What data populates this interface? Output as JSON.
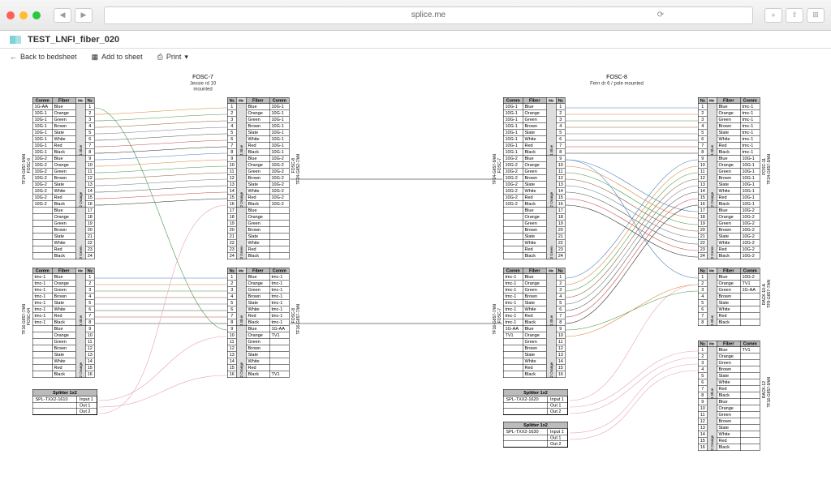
{
  "browser": {
    "url": "splice.me",
    "btn_share": "⇪",
    "btn_plus": "+",
    "btn_tabs": "⊞"
  },
  "page": {
    "title": "TEST_LNFI_fiber_020",
    "back": "Back to bedsheet",
    "add": "Add to sheet",
    "print": "Print"
  },
  "fosc7": {
    "title": "FOSC-7",
    "sub1": "Jessie rd 10",
    "sub2": "mounted"
  },
  "fosc8": {
    "title": "FOSC-8",
    "sub1": "Fern dr 6 / pole mounted"
  },
  "headers": {
    "comm": "Comm",
    "fiber": "Fiber",
    "mc": "Mc",
    "num": "№"
  },
  "fibers24": [
    "Blue",
    "Orange",
    "Green",
    "Brown",
    "Slate",
    "White",
    "Red",
    "Black",
    "Blue",
    "Orange",
    "Green",
    "Brown",
    "Slate",
    "White",
    "Red",
    "Black",
    "Blue",
    "Orange",
    "Green",
    "Brown",
    "Slate",
    "White",
    "Red",
    "Black"
  ],
  "fibers16": [
    "Blue",
    "Orange",
    "Green",
    "Brown",
    "Slate",
    "White",
    "Red",
    "Black",
    "Blue",
    "Orange",
    "Green",
    "Brown",
    "Slate",
    "White",
    "Red",
    "Black"
  ],
  "fibers8": [
    "Blue",
    "Orange",
    "Green",
    "Brown",
    "Slate",
    "White",
    "Red",
    "Black"
  ],
  "mc24": [
    "1 Blue",
    "2 Orange",
    "3 Green"
  ],
  "mc16": [
    "1 Blue",
    "2 Orange"
  ],
  "t1_comm": [
    "1G-AA",
    "10G-1",
    "10G-1",
    "10G-1",
    "10G-1",
    "10G-1",
    "10G-1",
    "10G-1",
    "10G-2",
    "10G-2",
    "10G-2",
    "10G-2",
    "10G-2",
    "10G-2",
    "10G-2",
    "10G-2",
    "",
    "",
    "",
    "",
    "",
    "",
    "",
    ""
  ],
  "t1_label": "FOSC-6",
  "t1_cable": "TF24-G657-9/kN",
  "t2_comm": [
    "10G-1",
    "10G-1",
    "10G-1",
    "10G-1",
    "10G-1",
    "10G-1",
    "10G-1",
    "10G-1",
    "10G-2",
    "10G-2",
    "10G-2",
    "10G-2",
    "10G-2",
    "10G-2",
    "10G-2",
    "10G-2",
    "",
    "",
    "",
    "",
    "",
    "",
    "",
    ""
  ],
  "t2_label": "FOSC-8",
  "t2_cable": "TF24-G652-7/kN",
  "t3_comm": [
    "tmc-1",
    "tmc-1",
    "tmc-1",
    "tmc-1",
    "tmc-1",
    "tmc-1",
    "tmc-1",
    "tmc-1",
    "",
    "",
    "",
    "",
    "",
    "",
    "",
    ""
  ],
  "t3_label": "FOSC-04",
  "t3_cable": "TF16-G657-7/kN",
  "t4_comm": [
    "tmc-1",
    "tmc-1",
    "tmc-1",
    "tmc-1",
    "tmc-1",
    "tmc-1",
    "tmc-1",
    "tmc-1",
    "1G-AA",
    "TV1",
    "",
    "",
    "",
    "",
    "",
    "TV1"
  ],
  "t4_label": "FOSC-8",
  "t4_cable": "TF16-G657-7/kN",
  "t5_comm": [
    "10G-1",
    "10G-1",
    "10G-1",
    "10G-1",
    "10G-1",
    "10G-1",
    "10G-1",
    "10G-1",
    "10G-2",
    "10G-2",
    "10G-2",
    "10G-2",
    "10G-2",
    "10G-2",
    "10G-2",
    "10G-2",
    "",
    "",
    "",
    "",
    "",
    "",
    "",
    ""
  ],
  "t5_label": "FOSC-7",
  "t5_cable": "TF24-G657-9/kN",
  "t6_comm": [
    "tmc-1",
    "tmc-1",
    "tmc-1",
    "tmc-1",
    "tmc-1",
    "tmc-1",
    "tmc-1",
    "tmc-1",
    "10G-1",
    "10G-1",
    "10G-1",
    "10G-1",
    "10G-1",
    "10G-1",
    "10G-1",
    "10G-1",
    "10G-2",
    "10G-2",
    "10G-2",
    "10G-2",
    "10G-2",
    "10G-2",
    "10G-2",
    "10G-2"
  ],
  "t6_label": "FOSC-11",
  "t6_cable": "TF24-G657-9/kN",
  "t7_comm": [
    "tmc-1",
    "tmc-1",
    "tmc-1",
    "tmc-1",
    "tmc-1",
    "tmc-1",
    "tmc-1",
    "tmc-1",
    "1G-AA",
    "TV1",
    "",
    "",
    "",
    "",
    "",
    ""
  ],
  "t7_label": "FOSC-7",
  "t7_cable": "TF16-G657-7/kN",
  "t8_comm": [
    "10G-2",
    "TV1",
    "1G-AA",
    "",
    "",
    "",
    "",
    ""
  ],
  "t8_label": "RACK-10-A",
  "t8_cable": "TF8-G657-7/kN",
  "t9_comm": [
    "TV1",
    "",
    "",
    "",
    "",
    "",
    "",
    "",
    "",
    "",
    "",
    "",
    "",
    "",
    "",
    ""
  ],
  "t9_label": "RACK-12",
  "t9_cable": "TF16-G657-9/kN",
  "sp1": {
    "title": "Splitter 1x2",
    "name": "SPL-TXX2-1610",
    "in": "Input 1",
    "o1": "Out 1",
    "o2": "Out 2"
  },
  "sp2": {
    "title": "Splitter 1x2",
    "name": "SPL-TXX2-1620",
    "in": "Input 1",
    "o1": "Out 1",
    "o2": "Out 2"
  },
  "sp3": {
    "title": "Splitter 1x2",
    "name": "SPL-TXX2-1630",
    "in": "Input 1",
    "o1": "Out 1",
    "o2": "Out 2"
  },
  "colors": {
    "blue": "#4a7db8",
    "orange": "#d68838",
    "green": "#4a9648",
    "brown": "#8a6238",
    "slate": "#707888",
    "red": "#c84848",
    "black": "#282828",
    "pink": "#e8a0b0"
  }
}
